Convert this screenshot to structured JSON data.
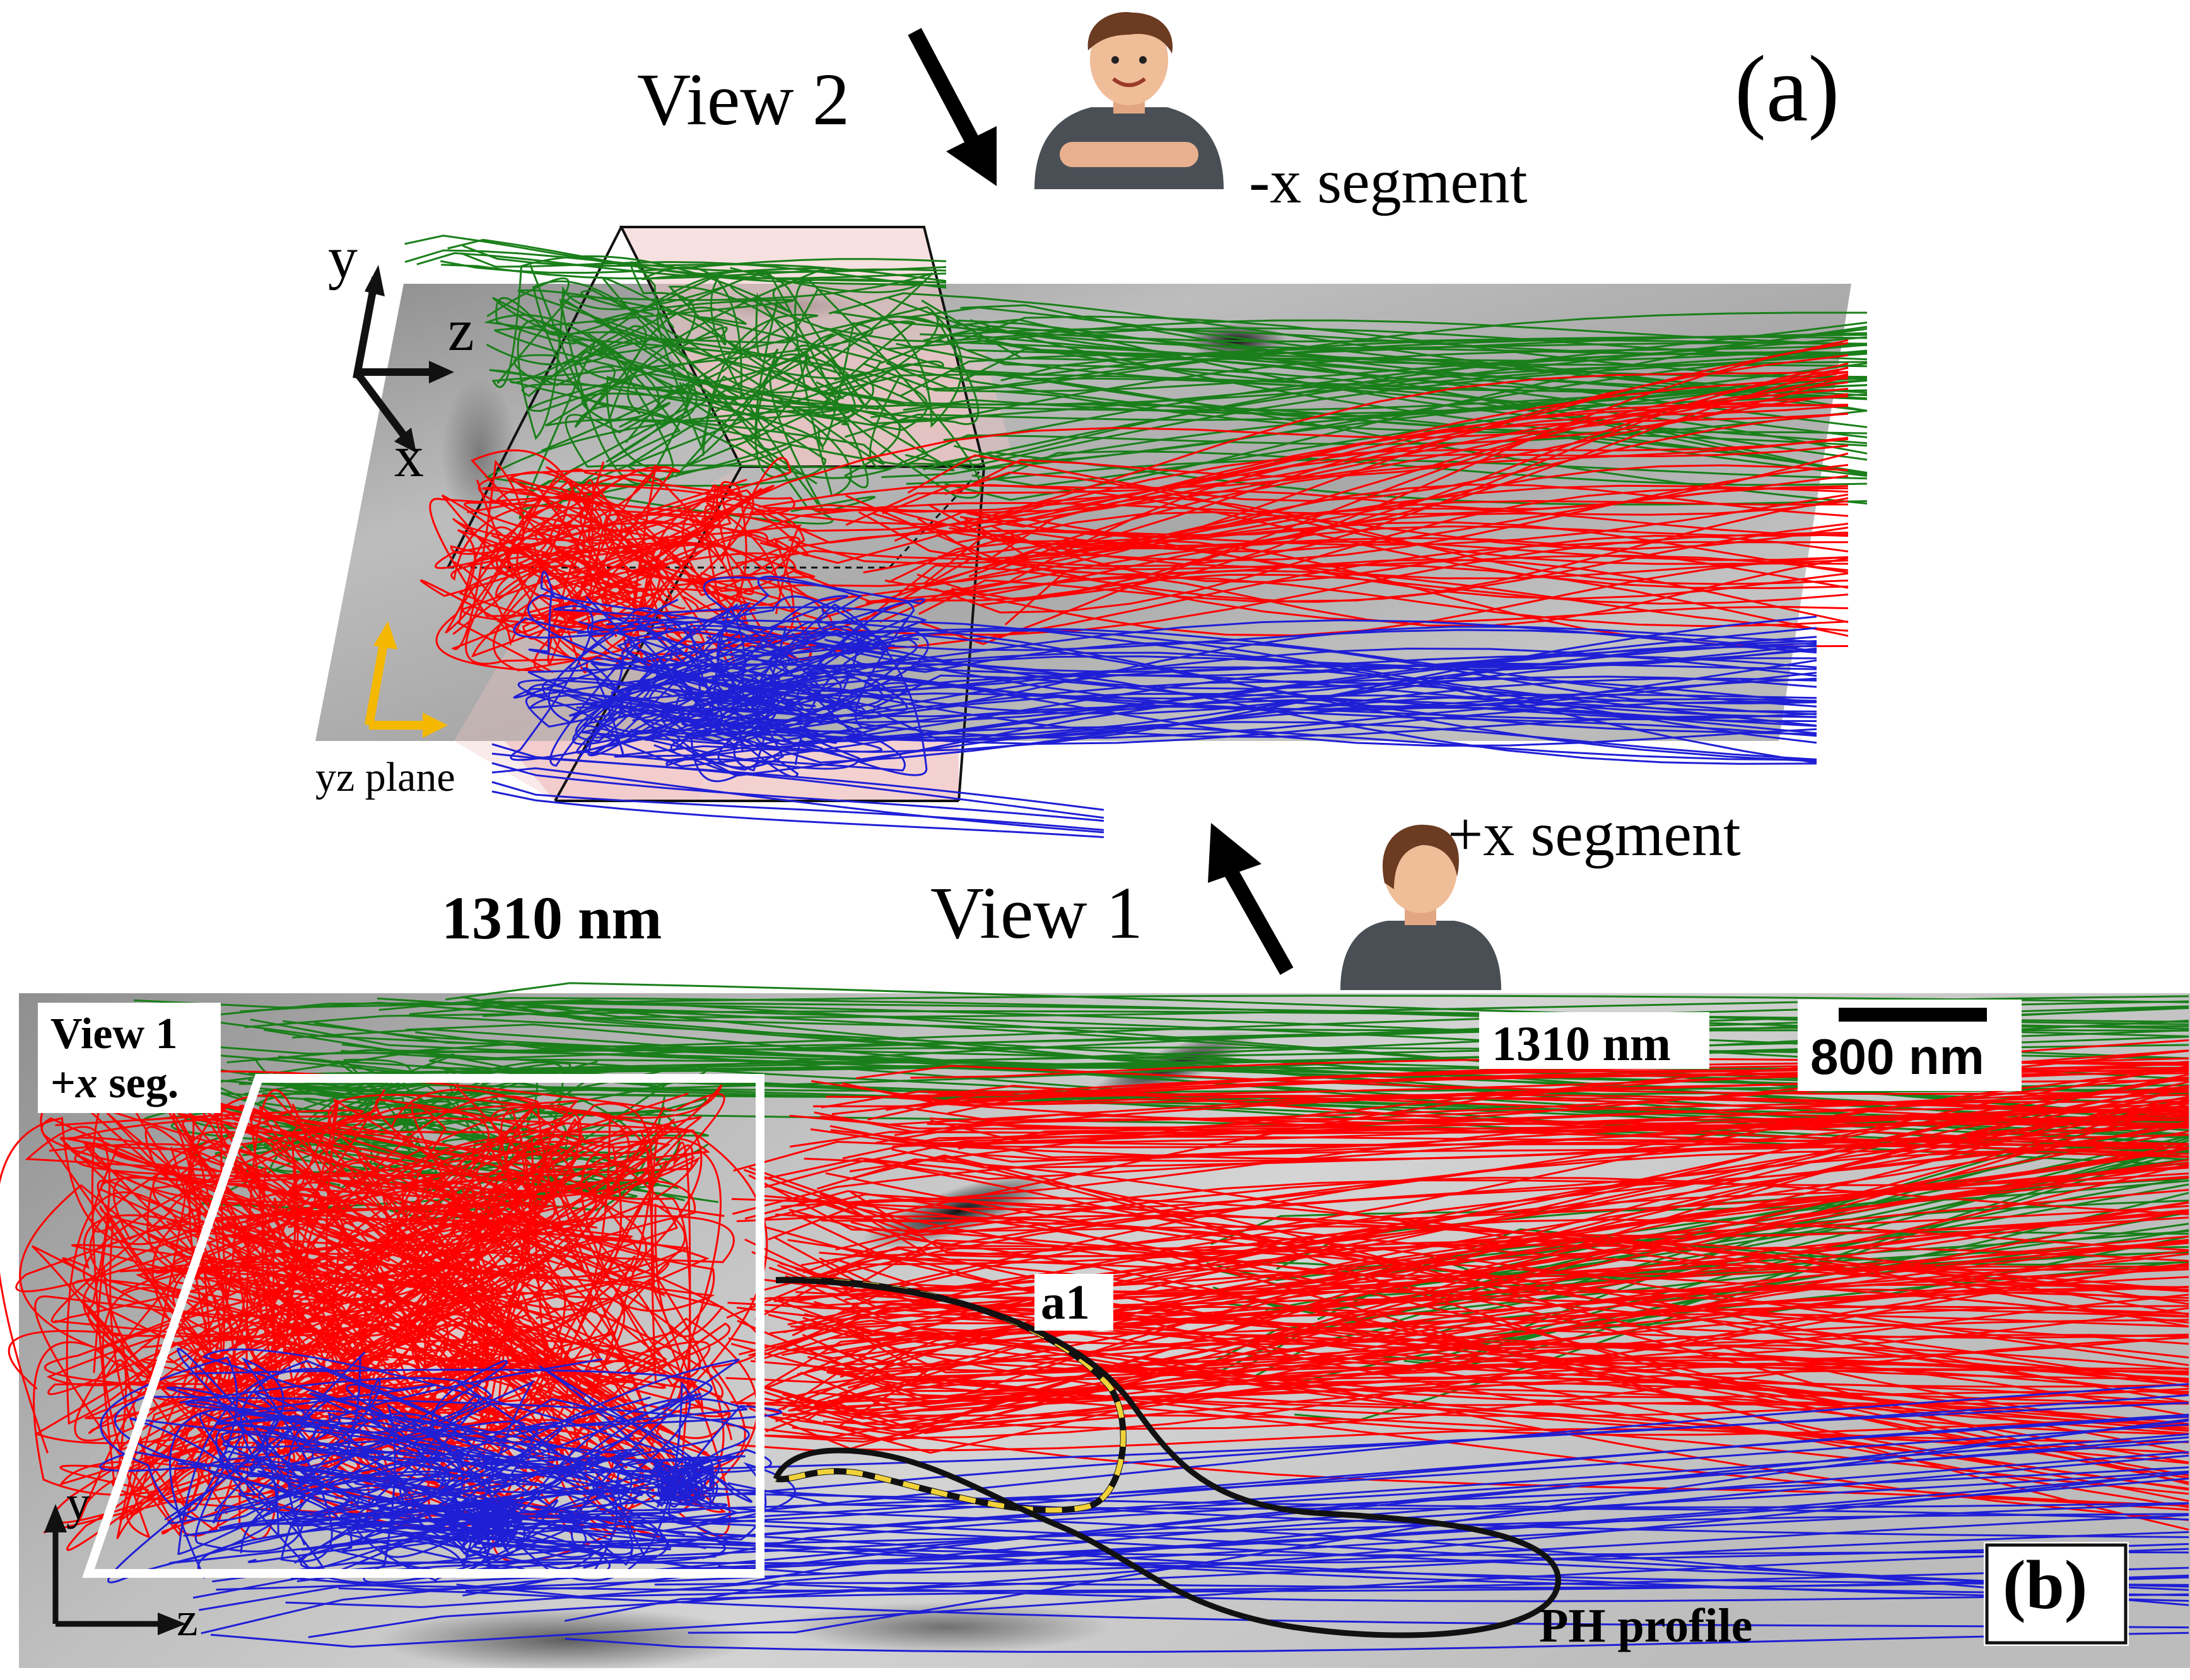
{
  "panel_a": {
    "tag": "(a)",
    "view2_label": "View 2",
    "view1_label": "View 1",
    "minus_x_label": "-x segment",
    "plus_x_label": "+x segment",
    "wavelength": "1310 nm",
    "plane_label": "yz plane",
    "axis_labels": {
      "y": "y",
      "z": "z",
      "x": "x"
    }
  },
  "panel_b": {
    "tag": "(b)",
    "view_label_line1": "View 1",
    "view_label_line2_sign": "+",
    "view_label_line2_var": "x",
    "view_label_line2_rest": " seg.",
    "wavelength": "1310 nm",
    "scalebar": "800 nm",
    "region_label": "a1",
    "profile_label": "PH profile",
    "axis_labels": {
      "y": "y",
      "z": "z"
    }
  },
  "colors": {
    "green_lines": "#1a7f1a",
    "red_lines": "#ff0000",
    "blue_lines": "#1f1fd6",
    "prism_fill": "#f1c6c6",
    "plane_gray": "#9a9a9a",
    "yellow_axes": "#f5b800",
    "dashed_outline": "#f2d23a"
  },
  "icons": [
    "person-icon",
    "arrow-icon"
  ]
}
